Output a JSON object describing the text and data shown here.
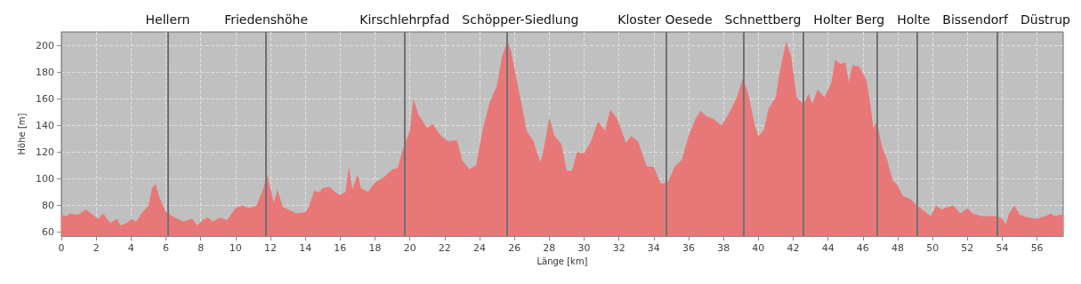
{
  "chart_data": {
    "type": "area",
    "xlabel": "Länge [km]",
    "ylabel": "Höhe [m]",
    "xlim": [
      0,
      57.5
    ],
    "ylim": [
      57,
      210
    ],
    "xticks": [
      0,
      2,
      4,
      6,
      8,
      10,
      12,
      14,
      16,
      18,
      20,
      22,
      24,
      26,
      28,
      30,
      32,
      34,
      36,
      38,
      40,
      42,
      44,
      46,
      48,
      50,
      52,
      54,
      56
    ],
    "yticks": [
      60,
      80,
      100,
      120,
      140,
      160,
      180,
      200
    ],
    "grid": true,
    "marker": "none",
    "series": [
      {
        "color": "#e87878",
        "x": [
          0,
          0.3,
          0.5,
          0.8,
          1.0,
          1.4,
          1.8,
          2.1,
          2.4,
          2.8,
          3.2,
          3.4,
          3.8,
          4.0,
          4.3,
          4.6,
          5.0,
          5.2,
          5.4,
          5.6,
          6.0,
          6.5,
          7.0,
          7.5,
          7.8,
          8.1,
          8.4,
          8.7,
          9.1,
          9.5,
          10.0,
          10.4,
          10.8,
          11.2,
          11.6,
          11.8,
          12.0,
          12.2,
          12.4,
          12.7,
          13.0,
          13.5,
          14.0,
          14.2,
          14.5,
          14.8,
          15.0,
          15.4,
          15.7,
          16.0,
          16.3,
          16.5,
          16.7,
          17.0,
          17.2,
          17.6,
          18.0,
          18.5,
          19.0,
          19.3,
          19.6,
          20.0,
          20.2,
          20.5,
          21.0,
          21.3,
          21.8,
          22.2,
          22.7,
          23.0,
          23.4,
          23.8,
          24.2,
          24.6,
          25.0,
          25.3,
          25.6,
          25.8,
          26.1,
          26.4,
          26.7,
          27.1,
          27.5,
          27.8,
          28.0,
          28.3,
          28.7,
          29.0,
          29.3,
          29.6,
          30.0,
          30.4,
          30.8,
          31.2,
          31.5,
          31.9,
          32.4,
          32.7,
          33.1,
          33.6,
          34.0,
          34.4,
          34.8,
          35.2,
          35.6,
          36.0,
          36.4,
          36.7,
          37.0,
          37.4,
          37.9,
          38.4,
          38.8,
          39.1,
          39.4,
          39.8,
          40.0,
          40.3,
          40.6,
          41.0,
          41.2,
          41.6,
          41.9,
          42.2,
          42.6,
          42.9,
          43.1,
          43.4,
          43.8,
          44.2,
          44.4,
          44.7,
          45.0,
          45.2,
          45.4,
          45.8,
          46.2,
          46.4,
          46.6,
          46.8,
          47.1,
          47.4,
          47.7,
          48.0,
          48.3,
          48.7,
          49.1,
          49.5,
          49.9,
          50.2,
          50.5,
          50.9,
          51.2,
          51.6,
          52.0,
          52.3,
          52.8,
          53.2,
          53.7,
          54.0,
          54.2,
          54.4,
          54.7,
          55.0,
          55.5,
          56.0,
          56.5,
          56.8,
          57.0,
          57.3,
          57.5
        ],
        "values": [
          73,
          72,
          74,
          73,
          73.5,
          77,
          73,
          70,
          74,
          67,
          70,
          65,
          67,
          70,
          68,
          74,
          80,
          93,
          96,
          87,
          75,
          71,
          68,
          70,
          65,
          69,
          71,
          68,
          71,
          69,
          78,
          80,
          78,
          80,
          93,
          103,
          93,
          82,
          92,
          79,
          77,
          74,
          75,
          79,
          91,
          90,
          93,
          94,
          90,
          88,
          90,
          109,
          92,
          103,
          93,
          90,
          97,
          101,
          107,
          108,
          122,
          136,
          160,
          148,
          138,
          141,
          132,
          128,
          129,
          114,
          107,
          110,
          138,
          158,
          170,
          192,
          203,
          196,
          176,
          157,
          136,
          128,
          112,
          130,
          146,
          132,
          126,
          106,
          106,
          120,
          119,
          128,
          143,
          136,
          152,
          145,
          127,
          132,
          128,
          109,
          109,
          96,
          97,
          109,
          114,
          132,
          145,
          151,
          147,
          145,
          140,
          151,
          162,
          175,
          165,
          140,
          132,
          136,
          153,
          161,
          178,
          203,
          191,
          161,
          156,
          164,
          156,
          167,
          161,
          172,
          189,
          186,
          187,
          172,
          185,
          184,
          174,
          159,
          138,
          143,
          124,
          114,
          99,
          95,
          87,
          85,
          80,
          76,
          72,
          80,
          77,
          79,
          80,
          74,
          78,
          74,
          72,
          72,
          72,
          70,
          66,
          74,
          80,
          73,
          71,
          70,
          72,
          74,
          72,
          73,
          73
        ]
      }
    ],
    "ref_lines": [
      {
        "axis": "x",
        "value": 6.1,
        "label": "Hellern",
        "color": "#707070"
      },
      {
        "axis": "x",
        "value": 11.75,
        "label": "Friedenshöhe",
        "color": "#707070"
      },
      {
        "axis": "x",
        "value": 19.7,
        "label": "Kirschlehrpfad",
        "color": "#707070"
      },
      {
        "axis": "x",
        "value": 25.55,
        "label": "Schöpper-Siedlung",
        "color": "#707070"
      },
      {
        "axis": "x",
        "value": 34.7,
        "label": "Kloster Oesede",
        "color": "#707070"
      },
      {
        "axis": "x",
        "value": 39.15,
        "label": "Schnettberg",
        "color": "#707070"
      },
      {
        "axis": "x",
        "value": 42.6,
        "label": "Holter Berg",
        "color": "#707070"
      },
      {
        "axis": "x",
        "value": 46.8,
        "label": "Holte",
        "color": "#707070"
      },
      {
        "axis": "x",
        "value": 49.1,
        "label": "Bissendorf",
        "color": "#707070"
      },
      {
        "axis": "x",
        "value": 53.7,
        "label": "Düstrup",
        "color": "#707070"
      }
    ]
  }
}
